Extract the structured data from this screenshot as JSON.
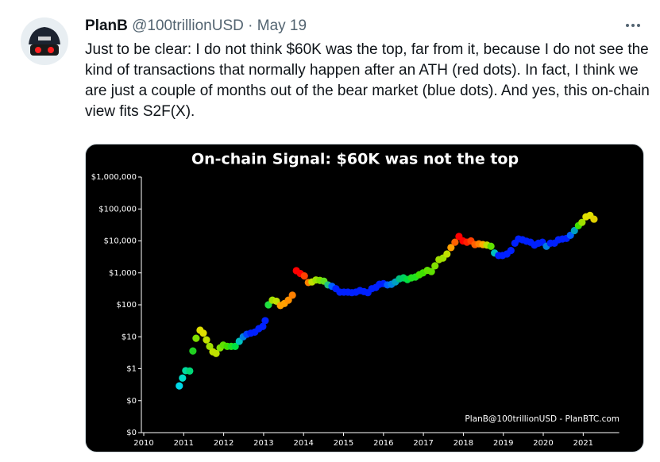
{
  "tweet": {
    "name": "PlanB",
    "handle": "@100trillionUSD",
    "date": "· May 19",
    "text": "Just to be clear: I do not think $60K was the top, far from it, because I do not see the kind of transactions that normally happen after an ATH (red dots). In fact, I think we are just a couple of months out of the bear market (blue dots). And yes, this on-chain view fits S2F(X)."
  },
  "chart_data": {
    "type": "scatter",
    "title": "On-chain Signal: $60K was not the top",
    "annotation": "PlanB@100trillionUSD - PlanBTC.com",
    "log_y": true,
    "xlim": [
      2010,
      2021.9
    ],
    "xticks": [
      2010,
      2011,
      2012,
      2013,
      2014,
      2015,
      2016,
      2017,
      2018,
      2019,
      2020,
      2021
    ],
    "ylim": [
      0.01,
      1000000
    ],
    "yticks": [
      {
        "value": 0.01,
        "label": "$0"
      },
      {
        "value": 0.1,
        "label": "$0"
      },
      {
        "value": 1,
        "label": "$1"
      },
      {
        "value": 10,
        "label": "$10"
      },
      {
        "value": 100,
        "label": "$100"
      },
      {
        "value": 1000,
        "label": "$1,000"
      },
      {
        "value": 10000,
        "label": "$10,000"
      },
      {
        "value": 100000,
        "label": "$100,000"
      },
      {
        "value": 1000000,
        "label": "$1,000,000"
      }
    ],
    "x": [
      2010.89,
      2010.97,
      2011.05,
      2011.15,
      2011.23,
      2011.31,
      2011.41,
      2011.49,
      2011.57,
      2011.65,
      2011.73,
      2011.81,
      2011.91,
      2011.99,
      2012.09,
      2012.19,
      2012.29,
      2012.39,
      2012.49,
      2012.58,
      2012.68,
      2012.78,
      2012.88,
      2012.98,
      2013.04,
      2013.12,
      2013.22,
      2013.32,
      2013.42,
      2013.52,
      2013.62,
      2013.72,
      2013.82,
      2013.92,
      2014.02,
      2014.12,
      2014.21,
      2014.31,
      2014.41,
      2014.51,
      2014.61,
      2014.71,
      2014.81,
      2014.91,
      2015.01,
      2015.11,
      2015.21,
      2015.31,
      2015.41,
      2015.51,
      2015.61,
      2015.71,
      2015.81,
      2015.9,
      2016.0,
      2016.1,
      2016.2,
      2016.3,
      2016.4,
      2016.5,
      2016.6,
      2016.7,
      2016.8,
      2016.9,
      2016.99,
      2017.1,
      2017.2,
      2017.29,
      2017.39,
      2017.49,
      2017.59,
      2017.69,
      2017.79,
      2017.89,
      2017.99,
      2018.09,
      2018.19,
      2018.29,
      2018.39,
      2018.49,
      2018.59,
      2018.69,
      2018.78,
      2018.88,
      2018.98,
      2019.09,
      2019.19,
      2019.29,
      2019.38,
      2019.48,
      2019.58,
      2019.68,
      2019.78,
      2019.88,
      2019.98,
      2020.08,
      2020.18,
      2020.28,
      2020.38,
      2020.48,
      2020.58,
      2020.68,
      2020.78,
      2020.88,
      2020.97,
      2021.07,
      2021.17,
      2021.27
    ],
    "values": [
      0.29,
      0.51,
      0.87,
      0.85,
      3.6,
      9,
      16,
      13,
      8,
      5,
      3.4,
      3,
      4.5,
      5.5,
      5,
      5,
      5,
      7.2,
      10,
      12,
      13,
      14,
      18,
      21,
      32,
      100,
      140,
      130,
      95,
      110,
      140,
      200,
      1170,
      950,
      800,
      500,
      520,
      600,
      580,
      550,
      420,
      380,
      320,
      250,
      250,
      250,
      240,
      250,
      280,
      260,
      240,
      320,
      350,
      440,
      460,
      420,
      440,
      520,
      650,
      700,
      620,
      700,
      740,
      880,
      1000,
      1200,
      1100,
      1660,
      2600,
      2900,
      3900,
      6200,
      9100,
      13800,
      10000,
      9100,
      10000,
      7700,
      8100,
      7700,
      7400,
      6800,
      4200,
      3500,
      3500,
      3900,
      5000,
      8500,
      11500,
      10900,
      9800,
      9100,
      7400,
      8500,
      9100,
      6800,
      8500,
      8500,
      10900,
      11500,
      12000,
      15000,
      21000,
      30000,
      38000,
      57000,
      63000,
      48000
    ],
    "colors": [
      "#00d8e8",
      "#00dcc8",
      "#00d8a0",
      "#00d878",
      "#20d020",
      "#80e000",
      "#e0e000",
      "#e0e000",
      "#c0e000",
      "#a0e000",
      "#c0e000",
      "#c0e000",
      "#80e000",
      "#60e000",
      "#40e000",
      "#20e020",
      "#00e040",
      "#00c0c0",
      "#0080e0",
      "#0040ff",
      "#0020ff",
      "#0020ff",
      "#0020ff",
      "#0020ff",
      "#0020ff",
      "#20e040",
      "#a0e000",
      "#c0e000",
      "#ffa000",
      "#ffa000",
      "#ff9000",
      "#ff8000",
      "#ff0000",
      "#ff0000",
      "#ff4000",
      "#ff8000",
      "#c0e000",
      "#a0e000",
      "#80e000",
      "#60e020",
      "#20c080",
      "#0060ff",
      "#0020ff",
      "#0020ff",
      "#0020ff",
      "#0020ff",
      "#0020ff",
      "#0020ff",
      "#0020ff",
      "#0020ff",
      "#0020ff",
      "#0020ff",
      "#0020ff",
      "#0020ff",
      "#0020ff",
      "#0060ff",
      "#0080e0",
      "#00a0c0",
      "#00c080",
      "#00d060",
      "#00e040",
      "#20e020",
      "#20e020",
      "#40e000",
      "#40e000",
      "#60e000",
      "#60e000",
      "#80e000",
      "#a0e000",
      "#a0e000",
      "#c0e000",
      "#ffa000",
      "#ff6000",
      "#ff0000",
      "#ff0000",
      "#ff2000",
      "#ff4000",
      "#ff6000",
      "#ff8000",
      "#ffb000",
      "#c0e000",
      "#60e000",
      "#00c0c0",
      "#0020ff",
      "#0020ff",
      "#0020ff",
      "#0020ff",
      "#0020ff",
      "#0020ff",
      "#0020ff",
      "#0020ff",
      "#0020ff",
      "#0020ff",
      "#0020ff",
      "#0020ff",
      "#0080e0",
      "#0020ff",
      "#0020ff",
      "#0020ff",
      "#0020ff",
      "#0020ff",
      "#0060ff",
      "#00a0c0",
      "#40e000",
      "#a0e000",
      "#e0e000",
      "#e0e000",
      "#e0d000"
    ]
  }
}
